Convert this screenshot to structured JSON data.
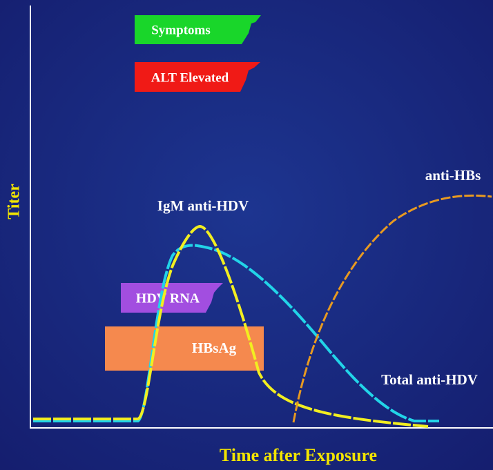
{
  "axes": {
    "y_label": "Titer",
    "x_label": "Time after Exposure"
  },
  "bars": [
    {
      "label": "Symptoms"
    },
    {
      "label": "ALT Elevated"
    },
    {
      "label": "HDV RNA"
    },
    {
      "label": "HBsAg"
    }
  ],
  "curves": [
    {
      "label": "IgM anti-HDV"
    },
    {
      "label": "Total anti-HDV"
    },
    {
      "label": "anti-HBs"
    }
  ]
}
